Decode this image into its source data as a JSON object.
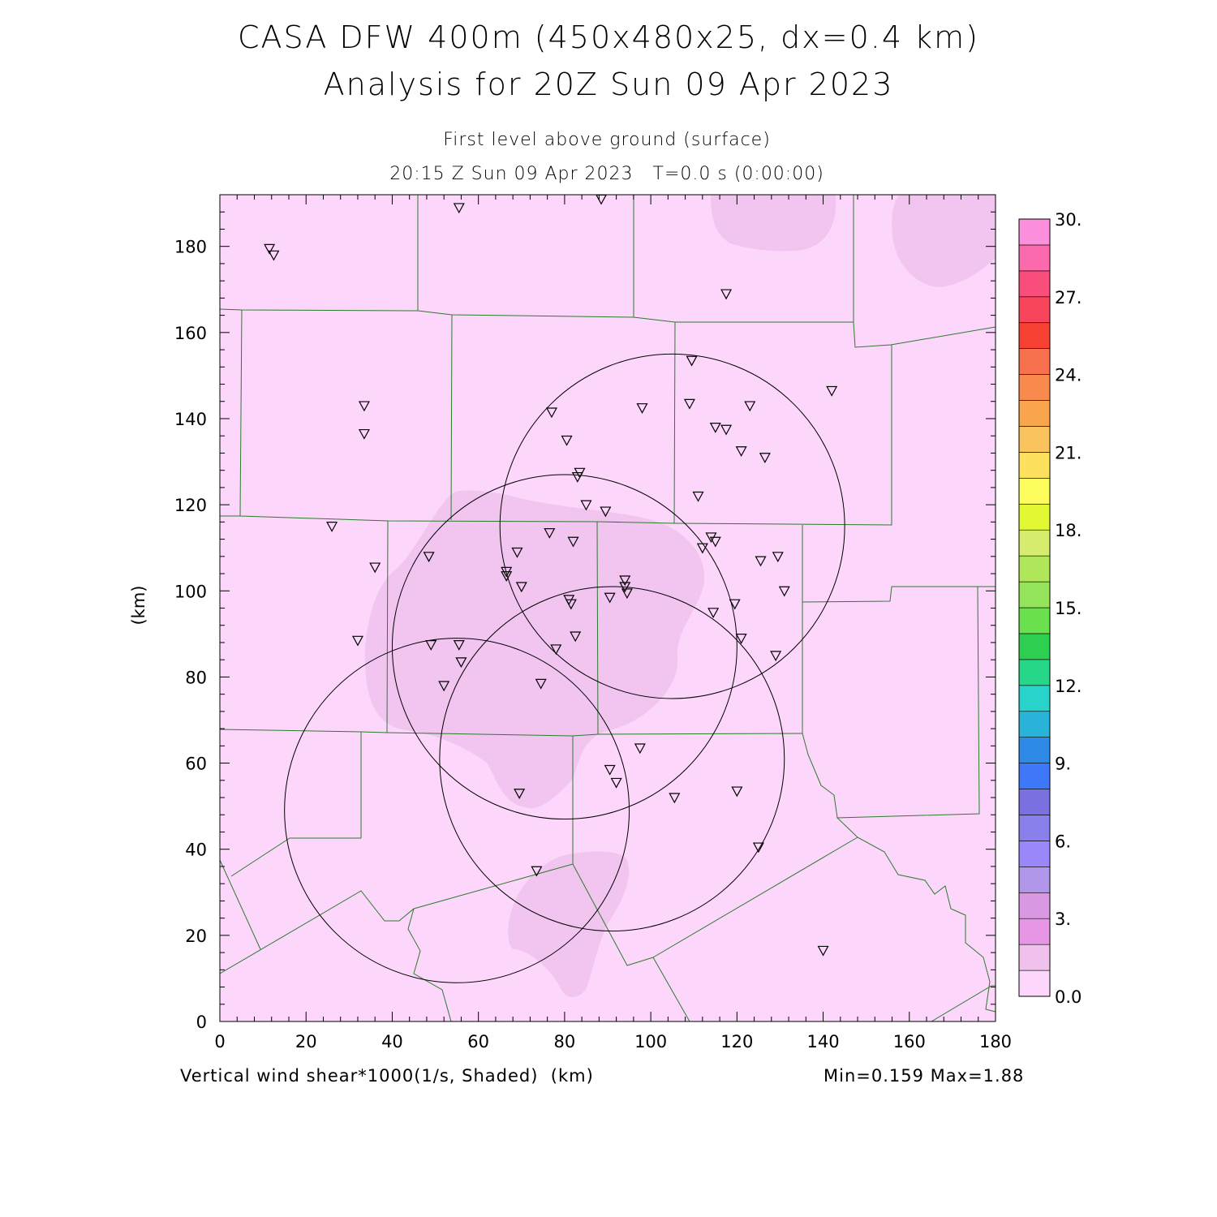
{
  "header": {
    "title_line1": "CASA DFW 400m (450x480x25, dx=0.4 km)",
    "title_line2": "Analysis for 20Z Sun 09 Apr 2023",
    "subtitle_line1": "First level above ground (surface)",
    "subtitle_line2": "20:15 Z Sun 09 Apr 2023   T=0.0 s (0:00:00)"
  },
  "footer": {
    "field_label": "Vertical wind shear*1000(1/s, Shaded)  (km)",
    "minmax": "Min=0.159 Max=1.88"
  },
  "chart_data": {
    "type": "heatmap",
    "title": "CASA DFW 400m (450x480x25, dx=0.4 km) Analysis for 20Z Sun 09 Apr 2023",
    "xlabel": "",
    "ylabel": "(km)",
    "xlim": [
      0,
      180
    ],
    "ylim": [
      0,
      192
    ],
    "x_ticks": [
      0,
      20,
      40,
      60,
      80,
      100,
      120,
      140,
      160,
      180
    ],
    "y_ticks": [
      0,
      20,
      40,
      60,
      80,
      100,
      120,
      140,
      160,
      180
    ],
    "y_tick_labels": [
      "0",
      "20",
      "40",
      "60",
      "80",
      "100",
      "120",
      "140",
      "160",
      "180"
    ],
    "x_tick_labels": [
      "0",
      "20",
      "40",
      "60",
      "80",
      "100",
      "120",
      "140",
      "160",
      "180"
    ],
    "field": "Vertical wind shear*1000 (1/s)",
    "min": 0.159,
    "max": 1.88,
    "colorbar": {
      "min": 0.0,
      "max": 30.0,
      "step": 1.5,
      "labels": [
        "0.0",
        "3.",
        "6.",
        "9.",
        "12.",
        "15.",
        "18.",
        "21.",
        "24.",
        "27.",
        "30."
      ],
      "colors": [
        "#fdd7fb",
        "#f1c1ee",
        "#e795e5",
        "#d898e2",
        "#b097ea",
        "#9a88fa",
        "#8a80ec",
        "#7a70e0",
        "#3e78f8",
        "#2e8ae6",
        "#2ab3d9",
        "#28d3cb",
        "#26d789",
        "#2ece50",
        "#6ae04e",
        "#93e45a",
        "#b0e65a",
        "#d6ec6e",
        "#e2f832",
        "#fdfd5e",
        "#fde15e",
        "#fbc35e",
        "#f9a54e",
        "#f98a4e",
        "#f7714e",
        "#f74233",
        "#f9455c",
        "#f94e7c",
        "#fb6aac",
        "#fd90dc"
      ]
    },
    "shaded_regions_value": "0.159-1.88 (lowest bins)",
    "radar_rings": [
      {
        "center": [
          105,
          115
        ],
        "radius": 40
      },
      {
        "center": [
          80,
          87
        ],
        "radius": 40
      },
      {
        "center": [
          91,
          61
        ],
        "radius": 40
      },
      {
        "center": [
          55,
          49
        ],
        "radius": 40
      }
    ],
    "stations": [
      [
        11.5,
        179.5
      ],
      [
        12.5,
        178.0
      ],
      [
        55.5,
        189.0
      ],
      [
        88.5,
        191.0
      ],
      [
        117.5,
        169.0
      ],
      [
        33.5,
        143.0
      ],
      [
        33.5,
        136.5
      ],
      [
        77,
        141.5
      ],
      [
        80.5,
        135.0
      ],
      [
        98,
        142.5
      ],
      [
        109.5,
        153.5
      ],
      [
        109,
        143.5
      ],
      [
        115,
        138.0
      ],
      [
        117.5,
        137.5
      ],
      [
        123,
        143.0
      ],
      [
        121,
        132.5
      ],
      [
        126.5,
        131.0
      ],
      [
        142,
        146.5
      ],
      [
        83.5,
        127.5
      ],
      [
        83,
        126.5
      ],
      [
        85,
        120.0
      ],
      [
        89.5,
        118.5
      ],
      [
        111,
        122.0
      ],
      [
        26,
        115.0
      ],
      [
        36,
        105.5
      ],
      [
        48.5,
        108.0
      ],
      [
        69,
        109.0
      ],
      [
        76.5,
        113.5
      ],
      [
        82,
        111.5
      ],
      [
        66.5,
        104.5
      ],
      [
        66.5,
        103.5
      ],
      [
        70,
        101.0
      ],
      [
        94,
        102.5
      ],
      [
        94,
        101.0
      ],
      [
        94.5,
        99.5
      ],
      [
        81,
        98.0
      ],
      [
        81.5,
        97.0
      ],
      [
        90.5,
        98.5
      ],
      [
        114,
        112.5
      ],
      [
        115,
        111.5
      ],
      [
        112,
        110.0
      ],
      [
        125.5,
        107.0
      ],
      [
        129.5,
        108.0
      ],
      [
        131,
        100.0
      ],
      [
        119.5,
        97.0
      ],
      [
        114.5,
        95.0
      ],
      [
        32,
        88.5
      ],
      [
        49,
        87.5
      ],
      [
        55.5,
        87.5
      ],
      [
        56,
        83.5
      ],
      [
        52,
        78.0
      ],
      [
        78,
        86.5
      ],
      [
        82.5,
        89.5
      ],
      [
        74.5,
        78.5
      ],
      [
        121,
        89.0
      ],
      [
        129,
        85.0
      ],
      [
        97.5,
        63.5
      ],
      [
        90.5,
        58.5
      ],
      [
        92,
        55.5
      ],
      [
        69.5,
        53.0
      ],
      [
        105.5,
        52.0
      ],
      [
        120,
        53.5
      ],
      [
        125,
        40.5
      ],
      [
        73.5,
        35.0
      ],
      [
        140,
        16.5
      ]
    ]
  }
}
